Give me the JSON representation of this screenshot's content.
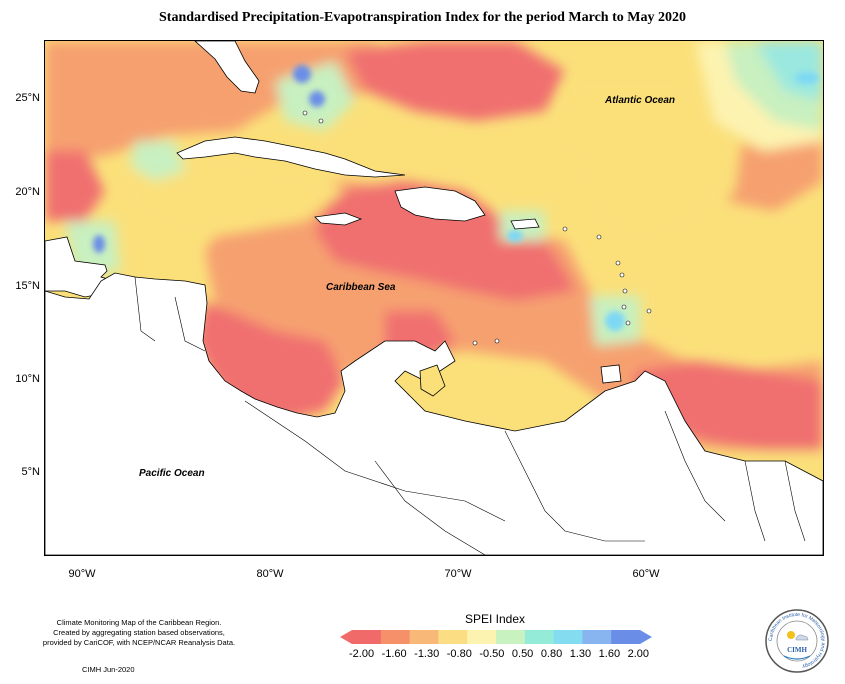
{
  "title": "Standardised Precipitation-Evapotranspiration Index for the period March to May 2020",
  "axes": {
    "y_ticks": [
      "25°N",
      "20°N",
      "15°N",
      "10°N",
      "5°N"
    ],
    "x_ticks": [
      "90°W",
      "80°W",
      "70°W",
      "60°W"
    ]
  },
  "labels": {
    "atlantic": "Atlantic Ocean",
    "caribbean": "Caribbean Sea",
    "pacific": "Pacific Ocean"
  },
  "credits": {
    "line1": "Climate Monitoring Map of the Caribbean Region.",
    "line2": "Created by aggregating station based observations,",
    "line3": "provided by CariCOF, with NCEP/NCAR Reanalysis Data.",
    "stamp": "CIMH  Jun-2020"
  },
  "legend": {
    "title": "SPEI Index",
    "values": [
      "-2.00",
      "-1.60",
      "-1.30",
      "-0.80",
      "-0.50",
      "0.50",
      "0.80",
      "1.30",
      "1.60",
      "2.00"
    ],
    "colors": [
      "#f06a6a",
      "#f5906a",
      "#f8b878",
      "#fbde84",
      "#fdf3b0",
      "#c8f3c0",
      "#94ecd8",
      "#84dcf0",
      "#88b4f0",
      "#6a8ee8"
    ]
  },
  "colors": {
    "very_dry": "#f07070",
    "dry": "#f6a070",
    "moderately_dry": "#f9c080",
    "slightly_dry": "#fbe07a",
    "near_normal": "#fdf3b0",
    "slightly_wet": "#c8f0c0",
    "wet": "#9ae8e0",
    "very_wet": "#7ed8f4",
    "extremely_wet": "#6a8ee8",
    "land": "#ffffff"
  },
  "logo": {
    "name": "CIMH",
    "ring_text": "Caribbean Institute for Meteorology and Hydrology"
  }
}
